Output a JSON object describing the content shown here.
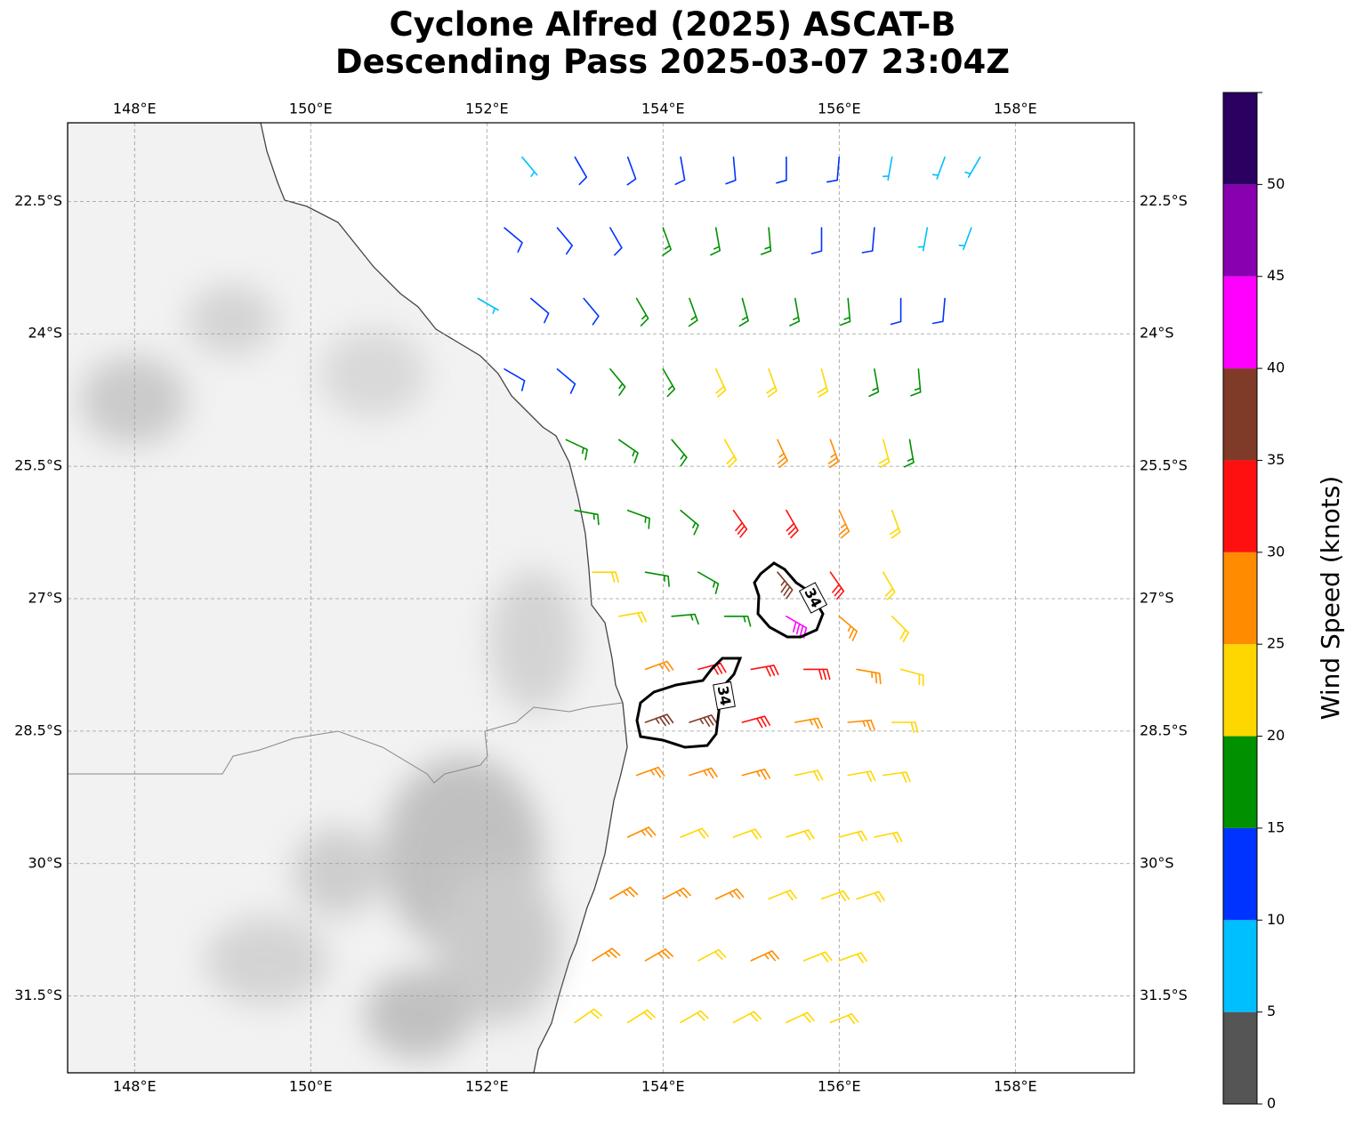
{
  "title": [
    "Cyclone Alfred (2025) ASCAT-B",
    "Descending Pass 2025-03-07 23:04Z"
  ],
  "map": {
    "xlim": [
      147.24,
      159.35
    ],
    "ylim": [
      -32.37,
      -21.61
    ],
    "xticks": [
      {
        "value": 148,
        "label": "148°E"
      },
      {
        "value": 150,
        "label": "150°E"
      },
      {
        "value": 152,
        "label": "152°E"
      },
      {
        "value": 154,
        "label": "154°E"
      },
      {
        "value": 156,
        "label": "156°E"
      },
      {
        "value": 158,
        "label": "158°E"
      }
    ],
    "yticks": [
      {
        "value": -22.5,
        "label": "22.5°S"
      },
      {
        "value": -24,
        "label": "24°S"
      },
      {
        "value": -25.5,
        "label": "25.5°S"
      },
      {
        "value": -27,
        "label": "27°S"
      },
      {
        "value": -28.5,
        "label": "28.5°S"
      },
      {
        "value": -30,
        "label": "30°S"
      },
      {
        "value": -31.5,
        "label": "31.5°S"
      }
    ],
    "grid": true
  },
  "contours": [
    {
      "level": 34
    },
    {
      "level": 34
    }
  ],
  "colorbar": {
    "label": "Wind Speed (knots)",
    "lim": [
      0,
      55
    ],
    "ticks": [
      0,
      5,
      10,
      15,
      20,
      25,
      30,
      35,
      40,
      45,
      50
    ],
    "colors": [
      "#555555",
      "#00bfff",
      "#0033ff",
      "#009000",
      "#ffd700",
      "#ff8c00",
      "#ff1010",
      "#803a28",
      "#ff00ff",
      "#8800b0",
      "#2a0060"
    ]
  },
  "barbs": {
    "lon": [
      152.4,
      153.0,
      153.6,
      154.2,
      154.8,
      155.4,
      156.0,
      156.6,
      157.2,
      157.6,
      152.2,
      152.8,
      153.4,
      154.0,
      154.6,
      155.2,
      155.8,
      156.4,
      157.0,
      157.5,
      151.9,
      152.5,
      153.1,
      153.7,
      154.3,
      154.9,
      155.5,
      156.1,
      156.7,
      157.2,
      152.2,
      152.8,
      153.4,
      154.0,
      154.6,
      155.2,
      155.8,
      156.4,
      156.9,
      152.9,
      153.5,
      154.1,
      154.7,
      155.3,
      155.9,
      156.5,
      156.8,
      153.0,
      153.6,
      154.2,
      154.8,
      155.4,
      156.0,
      156.6,
      153.2,
      153.8,
      154.4,
      155.3,
      155.9,
      156.5,
      153.5,
      154.1,
      154.7,
      155.4,
      156.0,
      156.6,
      153.8,
      154.4,
      155.0,
      155.6,
      156.2,
      156.7,
      153.8,
      154.3,
      154.9,
      155.5,
      156.1,
      156.6,
      153.7,
      154.3,
      154.9,
      155.5,
      156.1,
      156.5,
      153.6,
      154.2,
      154.8,
      155.4,
      156.0,
      156.4,
      153.4,
      154.0,
      154.6,
      155.2,
      155.8,
      156.2,
      153.2,
      153.8,
      154.4,
      155.0,
      155.6,
      156.0,
      153.0,
      153.6,
      154.2,
      154.8,
      155.4,
      155.9
    ],
    "lat": [
      -22.0,
      -22.0,
      -22.0,
      -22.0,
      -22.0,
      -22.0,
      -22.0,
      -22.0,
      -22.0,
      -22.0,
      -22.8,
      -22.8,
      -22.8,
      -22.8,
      -22.8,
      -22.8,
      -22.8,
      -22.8,
      -22.8,
      -22.8,
      -23.6,
      -23.6,
      -23.6,
      -23.6,
      -23.6,
      -23.6,
      -23.6,
      -23.6,
      -23.6,
      -23.6,
      -24.4,
      -24.4,
      -24.4,
      -24.4,
      -24.4,
      -24.4,
      -24.4,
      -24.4,
      -24.4,
      -25.2,
      -25.2,
      -25.2,
      -25.2,
      -25.2,
      -25.2,
      -25.2,
      -25.2,
      -26.0,
      -26.0,
      -26.0,
      -26.0,
      -26.0,
      -26.0,
      -26.0,
      -26.7,
      -26.7,
      -26.7,
      -26.7,
      -26.7,
      -26.7,
      -27.2,
      -27.2,
      -27.2,
      -27.2,
      -27.2,
      -27.2,
      -27.8,
      -27.8,
      -27.8,
      -27.8,
      -27.8,
      -27.8,
      -28.4,
      -28.4,
      -28.4,
      -28.4,
      -28.4,
      -28.4,
      -29.0,
      -29.0,
      -29.0,
      -29.0,
      -29.0,
      -29.0,
      -29.7,
      -29.7,
      -29.7,
      -29.7,
      -29.7,
      -29.7,
      -30.4,
      -30.4,
      -30.4,
      -30.4,
      -30.4,
      -30.4,
      -31.1,
      -31.1,
      -31.1,
      -31.1,
      -31.1,
      -31.1,
      -31.8,
      -31.8,
      -31.8,
      -31.8,
      -31.8,
      -31.8
    ],
    "speed": [
      8,
      12,
      13,
      13,
      12,
      12,
      10,
      8,
      7,
      6,
      12,
      13,
      14,
      15,
      16,
      15,
      14,
      10,
      8,
      7,
      9,
      13,
      14,
      16,
      17,
      18,
      18,
      16,
      14,
      12,
      13,
      14,
      16,
      19,
      22,
      23,
      22,
      18,
      17,
      15,
      17,
      19,
      24,
      28,
      26,
      22,
      17,
      16,
      18,
      19,
      31,
      32,
      27,
      22,
      24,
      19,
      17,
      38,
      30,
      24,
      23,
      16,
      17,
      42,
      28,
      24,
      27,
      31,
      32,
      30,
      26,
      23,
      36,
      37,
      33,
      28,
      25,
      22,
      29,
      27,
      26,
      24,
      23,
      22,
      26,
      24,
      23,
      24,
      22,
      21,
      27,
      26,
      25,
      24,
      22,
      21,
      27,
      26,
      24,
      25,
      23,
      22,
      22,
      24,
      23,
      22,
      23,
      22
    ],
    "dir": [
      140,
      150,
      160,
      170,
      175,
      180,
      185,
      190,
      200,
      210,
      130,
      140,
      150,
      160,
      170,
      175,
      180,
      185,
      190,
      200,
      120,
      130,
      140,
      150,
      160,
      165,
      170,
      175,
      180,
      185,
      120,
      130,
      140,
      150,
      155,
      160,
      165,
      170,
      175,
      115,
      125,
      140,
      150,
      155,
      160,
      165,
      170,
      100,
      110,
      130,
      145,
      150,
      155,
      160,
      90,
      100,
      120,
      140,
      145,
      150,
      80,
      85,
      90,
      120,
      130,
      135,
      70,
      75,
      80,
      90,
      100,
      105,
      70,
      72,
      75,
      80,
      85,
      90,
      70,
      72,
      75,
      78,
      80,
      82,
      65,
      68,
      70,
      72,
      75,
      78,
      60,
      62,
      65,
      68,
      70,
      72,
      58,
      60,
      62,
      65,
      68,
      70,
      55,
      58,
      60,
      62,
      65,
      68
    ]
  }
}
